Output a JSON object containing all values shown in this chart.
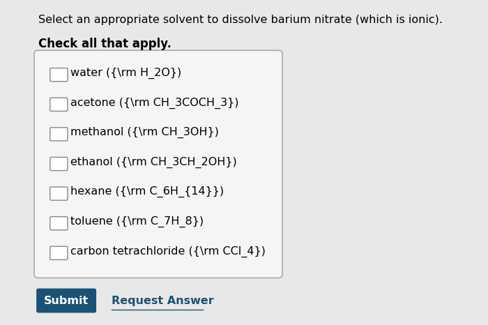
{
  "title_line": "Select an appropriate solvent to dissolve barium nitrate (which is ionic).",
  "subtitle": "Check all that apply.",
  "options": [
    "water ({\\rm H_2O})",
    "acetone ({\\rm CH_3COCH_3})",
    "methanol ({\\rm CH_3OH})",
    "ethanol ({\\rm CH_3CH_2OH})",
    "hexane ({\\rm C_6H_{14}})",
    "toluene ({\\rm C_7H_8})",
    "carbon tetrachloride ({\\rm CCl_4})"
  ],
  "bg_color": "#e8e8e8",
  "box_bg": "#f5f5f5",
  "box_border": "#aaaaaa",
  "submit_bg": "#1a5276",
  "submit_text": "Submit",
  "request_text": "Request Answer",
  "title_fontsize": 11.5,
  "subtitle_fontsize": 12,
  "option_fontsize": 11.5
}
